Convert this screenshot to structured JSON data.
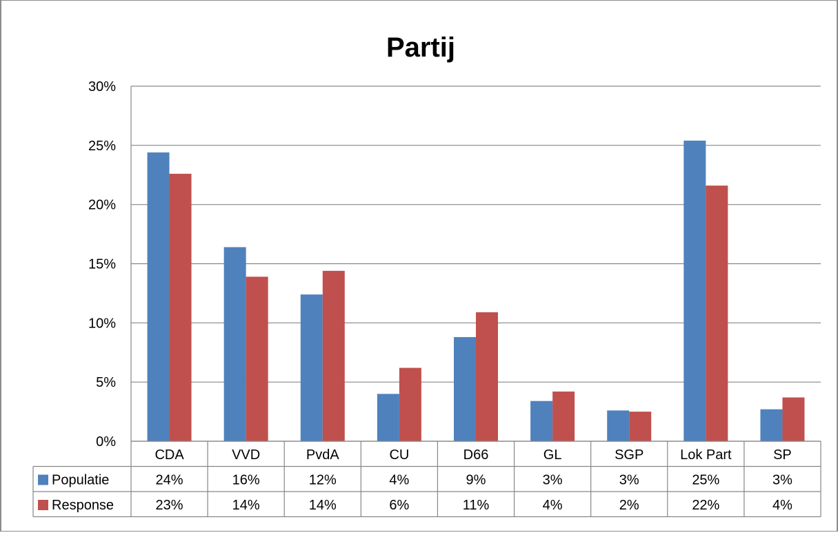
{
  "chart_data": {
    "type": "bar",
    "title": "Partij",
    "categories": [
      "CDA",
      "VVD",
      "PvdA",
      "CU",
      "D66",
      "GL",
      "SGP",
      "Lok Part",
      "SP"
    ],
    "series": [
      {
        "name": "Populatie",
        "color": "#4f81bd",
        "values": [
          24.4,
          16.4,
          12.4,
          4.0,
          8.8,
          3.4,
          2.6,
          25.4,
          2.7
        ],
        "labels": [
          "24%",
          "16%",
          "12%",
          "4%",
          "9%",
          "3%",
          "3%",
          "25%",
          "3%"
        ]
      },
      {
        "name": "Response",
        "color": "#c0504d",
        "values": [
          22.6,
          13.9,
          14.4,
          6.2,
          10.9,
          4.2,
          2.5,
          21.6,
          3.7
        ],
        "labels": [
          "23%",
          "14%",
          "14%",
          "6%",
          "11%",
          "4%",
          "2%",
          "22%",
          "4%"
        ]
      }
    ],
    "ylim": [
      0,
      30
    ],
    "yticks": [
      "0%",
      "5%",
      "10%",
      "15%",
      "20%",
      "25%",
      "30%"
    ],
    "ytick_values": [
      0,
      5,
      10,
      15,
      20,
      25,
      30
    ],
    "grid": true,
    "legend": "data-table",
    "xlabel": "",
    "ylabel": ""
  }
}
